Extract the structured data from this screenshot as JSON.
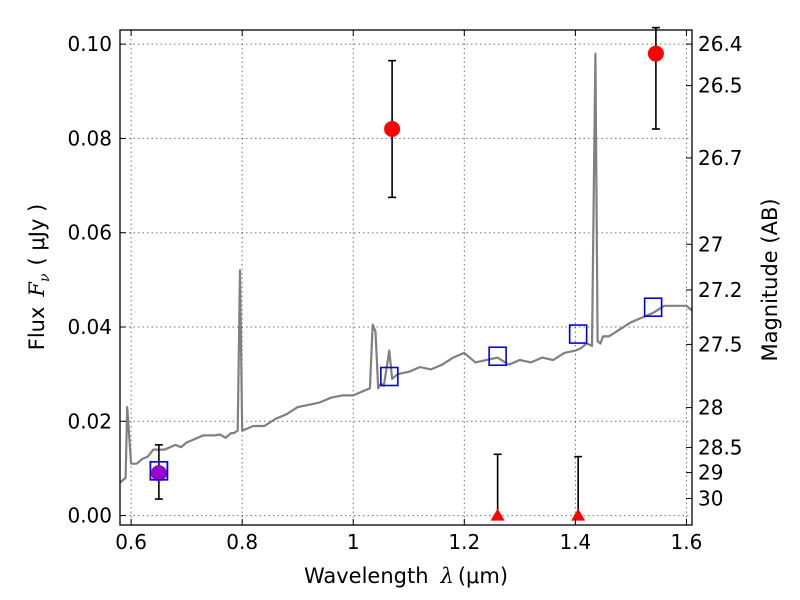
{
  "chart_data": {
    "type": "scatter",
    "xlabel_text": "Wavelength",
    "xlabel_unit": "(μm)",
    "ylabel_text": "Flux",
    "ylabel_unit": "( μJy )",
    "y2label": "Magnitude (AB)",
    "xlim": [
      0.58,
      1.61
    ],
    "ylim": [
      -0.002,
      0.103
    ],
    "x_ticks": [
      0.6,
      0.8,
      1.0,
      1.2,
      1.4,
      1.6
    ],
    "x_tick_labels": [
      "0.6",
      "0.8",
      "1",
      "1.2",
      "1.4",
      "1.6"
    ],
    "y_ticks": [
      0.0,
      0.02,
      0.04,
      0.06,
      0.08,
      0.1
    ],
    "y_tick_labels": [
      "0.00",
      "0.02",
      "0.04",
      "0.06",
      "0.08",
      "0.10"
    ],
    "y2_ticks": [
      26.4,
      26.5,
      26.7,
      27,
      27.2,
      27.5,
      28,
      28.5,
      29,
      30
    ],
    "y2_tick_labels": [
      "26.4",
      "26.5",
      "26.7",
      "27",
      "27.2",
      "27.5",
      "28",
      "28.5",
      "29",
      "30"
    ],
    "grid": true,
    "series": [
      {
        "name": "model-spectrum",
        "kind": "line",
        "color": "#808080",
        "x": [
          0.58,
          0.59,
          0.593,
          0.6,
          0.61,
          0.62,
          0.63,
          0.64,
          0.65,
          0.66,
          0.67,
          0.68,
          0.69,
          0.7,
          0.71,
          0.72,
          0.73,
          0.74,
          0.75,
          0.76,
          0.77,
          0.78,
          0.785,
          0.792,
          0.796,
          0.8,
          0.81,
          0.82,
          0.84,
          0.86,
          0.88,
          0.9,
          0.92,
          0.94,
          0.96,
          0.98,
          1.0,
          1.02,
          1.03,
          1.035,
          1.04,
          1.045,
          1.05,
          1.055,
          1.065,
          1.07,
          1.08,
          1.1,
          1.12,
          1.14,
          1.16,
          1.18,
          1.2,
          1.22,
          1.24,
          1.26,
          1.28,
          1.3,
          1.32,
          1.34,
          1.36,
          1.38,
          1.4,
          1.41,
          1.42,
          1.43,
          1.436,
          1.44,
          1.445,
          1.45,
          1.46,
          1.48,
          1.5,
          1.52,
          1.54,
          1.56,
          1.58,
          1.6,
          1.61
        ],
        "y": [
          0.007,
          0.008,
          0.023,
          0.011,
          0.011,
          0.012,
          0.0125,
          0.014,
          0.014,
          0.014,
          0.0145,
          0.015,
          0.0145,
          0.0155,
          0.016,
          0.0165,
          0.017,
          0.017,
          0.017,
          0.0172,
          0.0165,
          0.0175,
          0.0175,
          0.018,
          0.052,
          0.018,
          0.0185,
          0.019,
          0.019,
          0.0205,
          0.0215,
          0.023,
          0.0235,
          0.024,
          0.025,
          0.0255,
          0.0255,
          0.0265,
          0.027,
          0.0405,
          0.039,
          0.027,
          0.028,
          0.0275,
          0.035,
          0.029,
          0.03,
          0.0305,
          0.0315,
          0.031,
          0.032,
          0.0335,
          0.0345,
          0.0325,
          0.033,
          0.0335,
          0.032,
          0.033,
          0.0325,
          0.0335,
          0.033,
          0.0345,
          0.035,
          0.0355,
          0.0365,
          0.036,
          0.098,
          0.037,
          0.0365,
          0.038,
          0.038,
          0.0395,
          0.041,
          0.042,
          0.043,
          0.0445,
          0.0445,
          0.0445,
          0.0435
        ]
      },
      {
        "name": "model-bandpass-flux",
        "kind": "marker",
        "marker": "open-square",
        "color": "#0000ee",
        "x": [
          0.65,
          1.065,
          1.26,
          1.405,
          1.54
        ],
        "y": [
          0.0095,
          0.0295,
          0.0338,
          0.0385,
          0.0442
        ]
      },
      {
        "name": "observed-detections",
        "kind": "marker",
        "marker": "filled-circle",
        "color": "#ff0000",
        "x": [
          1.07,
          1.545
        ],
        "y": [
          0.082,
          0.098
        ],
        "yerr_low": [
          0.0675,
          0.082
        ],
        "yerr_high": [
          0.0965,
          0.1035
        ]
      },
      {
        "name": "observed-point-purple",
        "kind": "marker",
        "marker": "filled-circle",
        "color": "#9900cc",
        "x": [
          0.65
        ],
        "y": [
          0.009
        ],
        "yerr_low": [
          0.0035
        ],
        "yerr_high": [
          0.015
        ]
      },
      {
        "name": "upper-limits",
        "kind": "marker",
        "marker": "filled-triangle",
        "color": "#ff0000",
        "x": [
          1.26,
          1.405
        ],
        "y": [
          0.0,
          0.0
        ],
        "yerr_low": [
          0.0,
          0.0
        ],
        "yerr_high": [
          0.013,
          0.0125
        ]
      }
    ]
  }
}
